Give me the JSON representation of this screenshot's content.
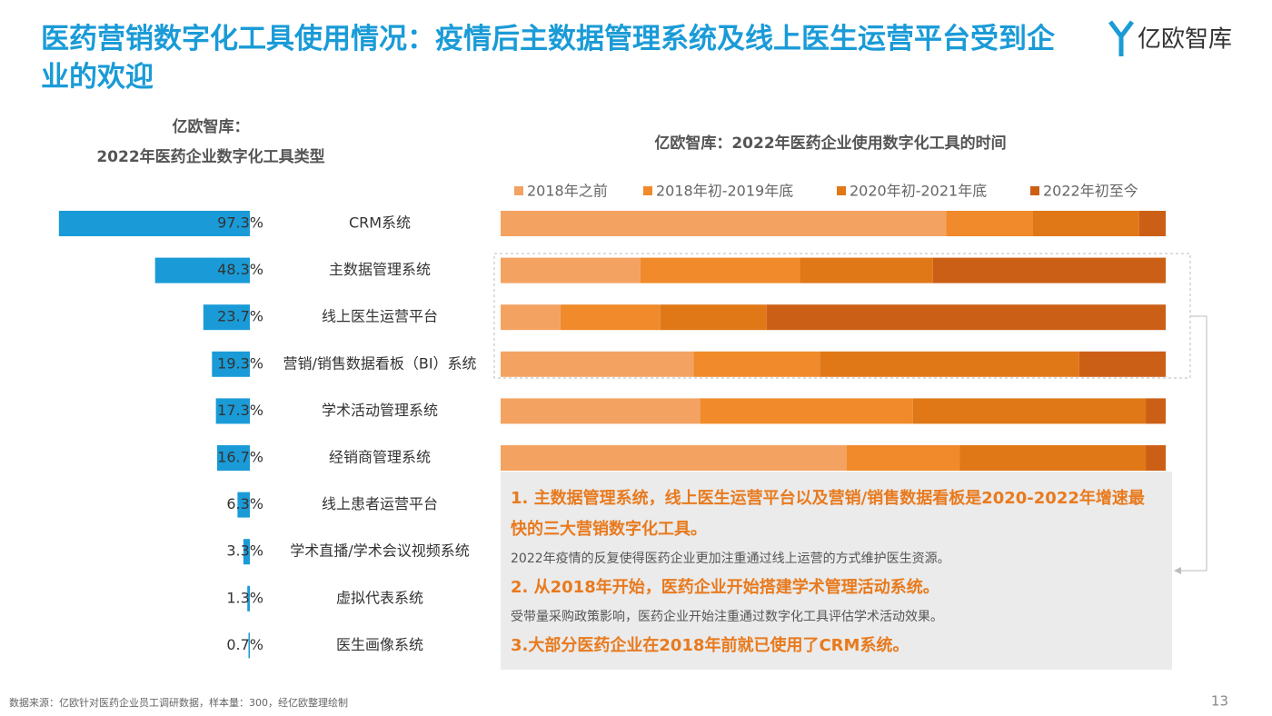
{
  "title": "医药营销数字化工具使用情况：疫情后主数据管理系统及线上医生运营平台受到企业的欢迎",
  "logo": "亿欧智库",
  "chart_data": [
    {
      "type": "hbar",
      "title": [
        "亿欧智库：",
        "2022年医药企业数字化工具类型"
      ],
      "categories": [
        "CRM系统",
        "主数据管理系统",
        "线上医生运营平台",
        "营销/销售数据看板（BI）系统",
        "学术活动管理系统",
        "经销商管理系统",
        "线上患者运营平台",
        "学术直播/学术会议视频系统",
        "虚拟代表系统",
        "医生画像系统"
      ],
      "values": [
        97.3,
        48.3,
        23.7,
        19.3,
        17.3,
        16.7,
        6.3,
        3.3,
        1.3,
        0.7
      ],
      "value_labels": [
        "97.3%",
        "48.3%",
        "23.7%",
        "19.3%",
        "17.3%",
        "16.7%",
        "6.3%",
        "3.3%",
        "1.3%",
        "0.7%"
      ],
      "color": "#1a9bd7",
      "xlim": [
        0,
        100
      ]
    },
    {
      "type": "stacked_hbar",
      "title": "亿欧智库：2022年医药企业使用数字化工具的时间",
      "series": [
        {
          "name": "2018年之前",
          "color": "#f4a261",
          "values": [
            67,
            21,
            9,
            29,
            30,
            52
          ]
        },
        {
          "name": "2018年初-2019年底",
          "color": "#f08a2a",
          "values": [
            13,
            24,
            15,
            19,
            32,
            17
          ]
        },
        {
          "name": "2020年初-2021年底",
          "color": "#e07818",
          "values": [
            16,
            20,
            16,
            39,
            35,
            28
          ]
        },
        {
          "name": "2022年初至今",
          "color": "#cc5f16",
          "values": [
            4,
            35,
            60,
            13,
            3,
            3
          ]
        }
      ],
      "xlim": [
        0,
        100
      ]
    }
  ],
  "notes": [
    {
      "heading": "1. 主数据管理系统，线上医生运营平台以及营销/销售数据看板是2020-2022年增速最快的三大营销数字化工具。",
      "text": "2022年疫情的反复使得医药企业更加注重通过线上运营的方式维护医生资源。"
    },
    {
      "heading": "2. 从2018年开始，医药企业开始搭建学术管理活动系统。",
      "text": "受带量采购政策影响，医药企业开始注重通过数字化工具评估学术活动效果。"
    },
    {
      "heading": "3.大部分医药企业在2018年前就已使用了CRM系统。"
    }
  ],
  "source": "数据来源：亿欧针对医药企业员工调研数据，样本量：300，经亿欧整理绘制",
  "page": "13"
}
